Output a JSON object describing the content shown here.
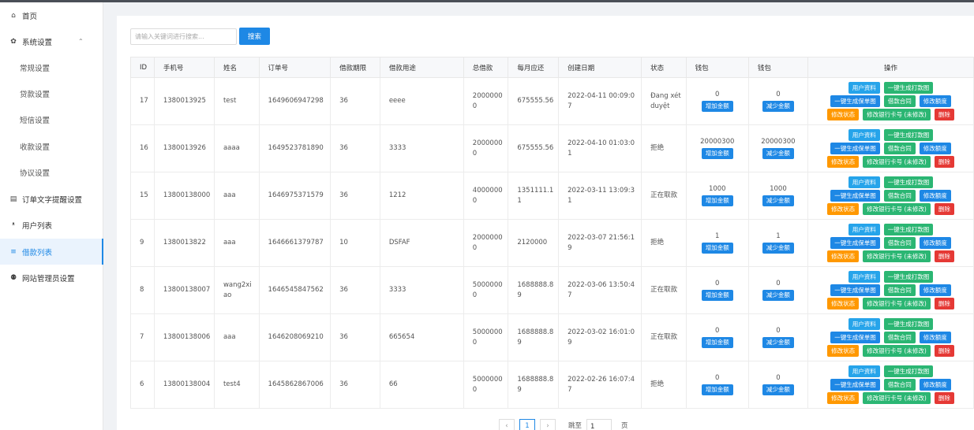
{
  "sidebar": {
    "items": [
      {
        "label": "首页",
        "icon": "home-icon",
        "glyph": "⌂"
      },
      {
        "label": "系统设置",
        "icon": "gear-icon",
        "glyph": "✿",
        "caret": "⌃"
      },
      {
        "label": "常规设置"
      },
      {
        "label": "贷款设置"
      },
      {
        "label": "短信设置"
      },
      {
        "label": "收款设置"
      },
      {
        "label": "协议设置"
      },
      {
        "label": "订单文字提醒设置",
        "icon": "list-icon",
        "glyph": "▤"
      },
      {
        "label": "用户列表",
        "icon": "users-icon",
        "glyph": "ᵜ"
      },
      {
        "label": "借款列表",
        "icon": "list-lines-icon",
        "glyph": "≡"
      },
      {
        "label": "网站管理员设置",
        "icon": "user-icon",
        "glyph": "⚉"
      }
    ]
  },
  "search": {
    "placeholder": "请输入关键词进行搜索...",
    "button": "搜索"
  },
  "table": {
    "headers": [
      "ID",
      "手机号",
      "姓名",
      "订单号",
      "借款期限",
      "借款用途",
      "总借款",
      "每月应还",
      "创建日期",
      "状态",
      "钱包",
      "钱包",
      "操作"
    ],
    "rows": [
      {
        "id": "17",
        "phone": "1380013925",
        "name": "test",
        "order": "1649606947298",
        "term": "36",
        "purpose": "eeee",
        "total": "20000000",
        "monthly": "675555.56",
        "date": "2022-04-11 00:09:07",
        "status": "Đang xét duyệt",
        "wallet1": "0",
        "wallet2": "0"
      },
      {
        "id": "16",
        "phone": "1380013926",
        "name": "aaaa",
        "order": "1649523781890",
        "term": "36",
        "purpose": "3333",
        "total": "20000000",
        "monthly": "675555.56",
        "date": "2022-04-10 01:03:01",
        "status": "拒绝",
        "wallet1": "20000300",
        "wallet2": "20000300"
      },
      {
        "id": "15",
        "phone": "13800138000",
        "name": "aaa",
        "order": "1646975371579",
        "term": "36",
        "purpose": "1212",
        "total": "40000000",
        "monthly": "1351111.11",
        "date": "2022-03-11 13:09:31",
        "status": "正在取款",
        "wallet1": "1000",
        "wallet2": "1000"
      },
      {
        "id": "9",
        "phone": "1380013822",
        "name": "aaa",
        "order": "1646661379787",
        "term": "10",
        "purpose": "DSFAF",
        "total": "20000000",
        "monthly": "2120000",
        "date": "2022-03-07 21:56:19",
        "status": "拒绝",
        "wallet1": "1",
        "wallet2": "1"
      },
      {
        "id": "8",
        "phone": "13800138007",
        "name": "wang2xiao",
        "order": "1646545847562",
        "term": "36",
        "purpose": "3333",
        "total": "50000000",
        "monthly": "1688888.89",
        "date": "2022-03-06 13:50:47",
        "status": "正在取款",
        "wallet1": "0",
        "wallet2": "0"
      },
      {
        "id": "7",
        "phone": "13800138006",
        "name": "aaa",
        "order": "1646208069210",
        "term": "36",
        "purpose": "665654",
        "total": "50000000",
        "monthly": "1688888.89",
        "date": "2022-03-02 16:01:09",
        "status": "正在取款",
        "wallet1": "0",
        "wallet2": "0"
      },
      {
        "id": "6",
        "phone": "13800138004",
        "name": "test4",
        "order": "1645862867006",
        "term": "36",
        "purpose": "66",
        "total": "50000000",
        "monthly": "1688888.89",
        "date": "2022-02-26 16:07:47",
        "status": "拒绝",
        "wallet1": "0",
        "wallet2": "0"
      }
    ],
    "wallet_add": "增加金额",
    "wallet_sub": "减少金额",
    "actions": {
      "user_info": "用户资料",
      "gen_loan_img": "一键生成打款图",
      "gen_guarantee_img": "一键生成保单图",
      "contract": "借款合同",
      "edit_amount": "修改额度",
      "edit_status": "修改状态",
      "edit_bank": "修改银行卡号 (未修改)",
      "delete": "删除"
    }
  },
  "pagination": {
    "prev": "‹",
    "current": "1",
    "next": "›",
    "jump_label": "跳至",
    "jump_value": "1",
    "unit": "页"
  },
  "colors": {
    "primary": "#1e88e5",
    "green": "#2bb673",
    "orange": "#ff9800",
    "red": "#e53935"
  }
}
